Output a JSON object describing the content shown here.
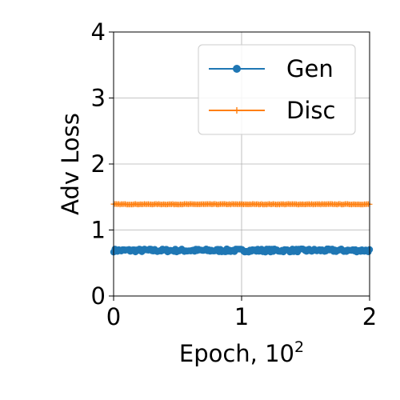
{
  "chart_data": {
    "type": "line",
    "xlabel": "Epoch, 10",
    "xlabel_sup": "2",
    "ylabel": "Adv Loss",
    "xlim": [
      0,
      2
    ],
    "ylim": [
      0,
      4
    ],
    "x_ticks": [
      "0",
      "1",
      "2"
    ],
    "y_ticks": [
      "0",
      "1",
      "2",
      "3",
      "4"
    ],
    "grid": true,
    "legend_position": "top-right",
    "series": [
      {
        "name": "Gen",
        "color": "#1f77b4",
        "marker": "circle",
        "x_range": [
          0,
          2
        ],
        "value": 0.69,
        "noise": 0.025,
        "points": 200
      },
      {
        "name": "Disc",
        "color": "#ff7f0e",
        "marker": "plus",
        "x_range": [
          0,
          2
        ],
        "value": 1.39,
        "noise": 0.004,
        "points": 200
      }
    ]
  }
}
